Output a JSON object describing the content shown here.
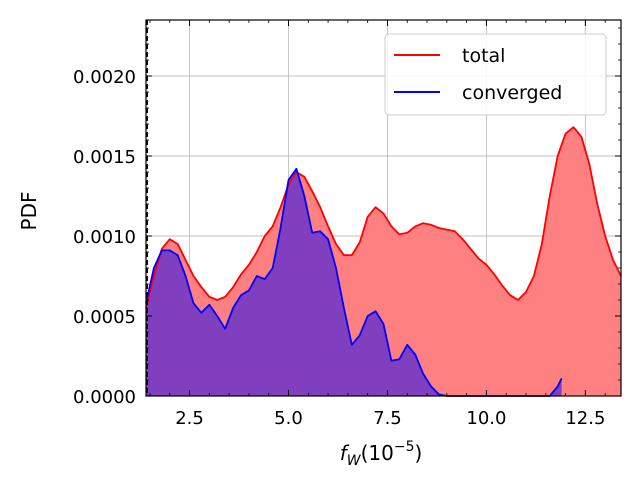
{
  "chart_data": {
    "type": "area",
    "title": "",
    "xlabel": "f_W(10^-5)",
    "xlabel_parts": {
      "base": "f",
      "sub": "W",
      "paren_open": "(10",
      "sup": "−5",
      "paren_close": ")"
    },
    "ylabel": "PDF",
    "xlim": [
      1.4,
      13.4
    ],
    "ylim": [
      0,
      0.00235
    ],
    "xticks": [
      2.5,
      5.0,
      7.5,
      10.0,
      12.5
    ],
    "xtick_labels": [
      "2.5",
      "5.0",
      "7.5",
      "10.0",
      "12.5"
    ],
    "yticks": [
      0,
      0.0005,
      0.001,
      0.0015,
      0.002
    ],
    "ytick_labels": [
      "0.0000",
      "0.0005",
      "0.0010",
      "0.0015",
      "0.0020"
    ],
    "grid": true,
    "legend_position": "top-right",
    "vertical_line_x": 1.4,
    "series": [
      {
        "name": "total",
        "color": "#ff0000",
        "fill_color": "#ff8080",
        "x": [
          1.4,
          1.6,
          1.8,
          2.0,
          2.2,
          2.4,
          2.6,
          2.8,
          3.0,
          3.2,
          3.4,
          3.6,
          3.8,
          4.0,
          4.2,
          4.4,
          4.6,
          4.8,
          5.0,
          5.2,
          5.4,
          5.6,
          5.8,
          6.0,
          6.2,
          6.4,
          6.6,
          6.8,
          7.0,
          7.2,
          7.4,
          7.6,
          7.8,
          8.0,
          8.2,
          8.4,
          8.6,
          8.8,
          9.0,
          9.2,
          9.4,
          9.6,
          9.8,
          10.0,
          10.2,
          10.4,
          10.6,
          10.8,
          11.0,
          11.2,
          11.4,
          11.6,
          11.8,
          12.0,
          12.2,
          12.4,
          12.6,
          12.8,
          13.0,
          13.2,
          13.4
        ],
        "y": [
          0.00055,
          0.00075,
          0.00092,
          0.00098,
          0.00095,
          0.00085,
          0.00075,
          0.00068,
          0.00062,
          0.0006,
          0.00062,
          0.00068,
          0.00076,
          0.00082,
          0.0009,
          0.001,
          0.00106,
          0.00118,
          0.00132,
          0.0014,
          0.00137,
          0.00128,
          0.00118,
          0.00106,
          0.00095,
          0.00088,
          0.00088,
          0.00096,
          0.00112,
          0.00118,
          0.00114,
          0.00106,
          0.00101,
          0.00102,
          0.00106,
          0.00108,
          0.00107,
          0.00105,
          0.00104,
          0.00103,
          0.00098,
          0.00092,
          0.00086,
          0.00082,
          0.00076,
          0.00069,
          0.00063,
          0.0006,
          0.00065,
          0.00075,
          0.00095,
          0.00125,
          0.0015,
          0.00164,
          0.00168,
          0.00162,
          0.00145,
          0.0012,
          0.001,
          0.00085,
          0.00075
        ]
      },
      {
        "name": "converged",
        "color": "#0000ff",
        "fill_color": "#7f3fbf",
        "x": [
          1.4,
          1.6,
          1.8,
          2.0,
          2.2,
          2.4,
          2.6,
          2.8,
          3.0,
          3.2,
          3.4,
          3.6,
          3.8,
          4.0,
          4.2,
          4.4,
          4.6,
          4.8,
          5.0,
          5.2,
          5.4,
          5.6,
          5.8,
          6.0,
          6.2,
          6.4,
          6.6,
          6.8,
          7.0,
          7.2,
          7.4,
          7.6,
          7.8,
          8.0,
          8.2,
          8.4,
          8.6,
          8.8,
          9.0,
          9.2,
          9.4,
          9.6,
          9.8,
          10.0,
          10.2,
          10.4,
          10.6,
          10.8,
          11.0,
          11.2,
          11.4,
          11.6,
          11.8,
          11.9
        ],
        "y": [
          0.00058,
          0.0008,
          0.00091,
          0.00091,
          0.00088,
          0.00075,
          0.00058,
          0.00052,
          0.00057,
          0.0005,
          0.00042,
          0.00055,
          0.00063,
          0.00066,
          0.00075,
          0.00073,
          0.0008,
          0.00105,
          0.00135,
          0.00142,
          0.00125,
          0.00102,
          0.00103,
          0.00098,
          0.0008,
          0.00055,
          0.00032,
          0.00038,
          0.0005,
          0.00053,
          0.00045,
          0.00022,
          0.00023,
          0.00032,
          0.00026,
          0.00014,
          6e-05,
          1e-05,
          0.0,
          0.0,
          0.0,
          0.0,
          0.0,
          0.0,
          0.0,
          0.0,
          0.0,
          0.0,
          0.0,
          0.0,
          0.0,
          0.0,
          6e-05,
          0.00011
        ]
      }
    ]
  }
}
